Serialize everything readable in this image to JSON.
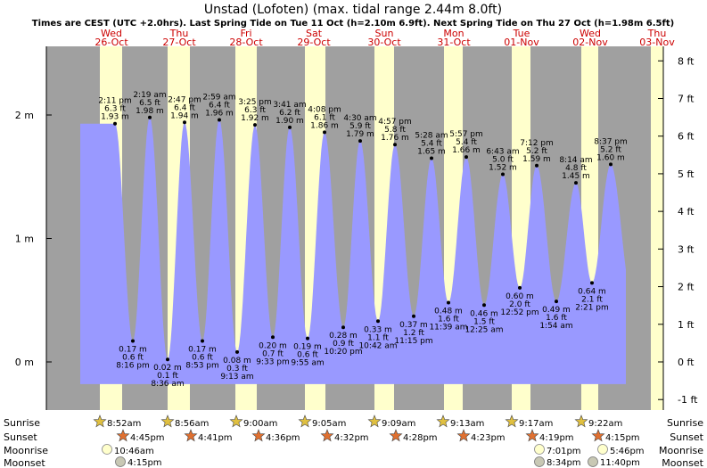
{
  "title": "Unstad (Lofoten) (max. tidal range 2.44m 8.0ft)",
  "subtitle": "Times are CEST (UTC +2.0hrs). Last Spring Tide on Tue 11 Oct (h=2.10m 6.9ft). Next Spring Tide on Thu 27 Oct (h=1.98m 6.5ft)",
  "colors": {
    "water": "#9999ff",
    "night": "#a0a0a0",
    "day": "#ffffcc",
    "day_label": "#cc0000"
  },
  "chart_data": {
    "type": "area",
    "y_left_ticks": [
      "0 m",
      "1 m",
      "2 m"
    ],
    "y_right_ticks": [
      "-1 ft",
      "0 ft",
      "1 ft",
      "2 ft",
      "3 ft",
      "4 ft",
      "5 ft",
      "6 ft",
      "7 ft",
      "8 ft"
    ],
    "ylim_m": [
      -0.3,
      2.5
    ],
    "days": [
      {
        "name": "Wed",
        "date": "26-Oct"
      },
      {
        "name": "Thu",
        "date": "27-Oct"
      },
      {
        "name": "Fri",
        "date": "28-Oct"
      },
      {
        "name": "Sat",
        "date": "29-Oct"
      },
      {
        "name": "Sun",
        "date": "30-Oct"
      },
      {
        "name": "Mon",
        "date": "31-Oct"
      },
      {
        "name": "Tue",
        "date": "01-Nov"
      },
      {
        "name": "Wed",
        "date": "02-Nov"
      },
      {
        "name": "Thu",
        "date": "03-Nov"
      }
    ],
    "high_tides": [
      {
        "time": "2:11 pm",
        "ft": "6.3 ft",
        "m": "1.93 m",
        "height": 1.93
      },
      {
        "time": "2:19 am",
        "ft": "6.5 ft",
        "m": "1.98 m",
        "height": 1.98
      },
      {
        "time": "2:47 pm",
        "ft": "6.4 ft",
        "m": "1.94 m",
        "height": 1.94
      },
      {
        "time": "2:59 am",
        "ft": "6.4 ft",
        "m": "1.96 m",
        "height": 1.96
      },
      {
        "time": "3:25 pm",
        "ft": "6.3 ft",
        "m": "1.92 m",
        "height": 1.92
      },
      {
        "time": "3:41 am",
        "ft": "6.2 ft",
        "m": "1.90 m",
        "height": 1.9
      },
      {
        "time": "4:08 pm",
        "ft": "6.1 ft",
        "m": "1.86 m",
        "height": 1.86
      },
      {
        "time": "4:30 am",
        "ft": "5.9 ft",
        "m": "1.79 m",
        "height": 1.79
      },
      {
        "time": "4:57 pm",
        "ft": "5.8 ft",
        "m": "1.76 m",
        "height": 1.76
      },
      {
        "time": "5:28 am",
        "ft": "5.4 ft",
        "m": "1.65 m",
        "height": 1.65
      },
      {
        "time": "5:57 pm",
        "ft": "5.4 ft",
        "m": "1.66 m",
        "height": 1.66
      },
      {
        "time": "6:43 am",
        "ft": "5.0 ft",
        "m": "1.52 m",
        "height": 1.52
      },
      {
        "time": "7:12 pm",
        "ft": "5.2 ft",
        "m": "1.59 m",
        "height": 1.59
      },
      {
        "time": "8:14 am",
        "ft": "4.8 ft",
        "m": "1.45 m",
        "height": 1.45
      },
      {
        "time": "8:37 pm",
        "ft": "5.2 ft",
        "m": "1.60 m",
        "height": 1.6
      }
    ],
    "low_tides": [
      {
        "m": "0.17 m",
        "ft": "0.6 ft",
        "time": "8:16 pm",
        "height": 0.17
      },
      {
        "m": "0.02 m",
        "ft": "0.1 ft",
        "time": "8:36 am",
        "height": 0.02
      },
      {
        "m": "0.17 m",
        "ft": "0.6 ft",
        "time": "8:53 pm",
        "height": 0.17
      },
      {
        "m": "0.08 m",
        "ft": "0.3 ft",
        "time": "9:13 am",
        "height": 0.08
      },
      {
        "m": "0.20 m",
        "ft": "0.7 ft",
        "time": "9:33 pm",
        "height": 0.2
      },
      {
        "m": "0.19 m",
        "ft": "0.6 ft",
        "time": "9:55 am",
        "height": 0.19
      },
      {
        "m": "0.28 m",
        "ft": "0.9 ft",
        "time": "10:20 pm",
        "height": 0.28
      },
      {
        "m": "0.33 m",
        "ft": "1.1 ft",
        "time": "10:42 am",
        "height": 0.33
      },
      {
        "m": "0.37 m",
        "ft": "1.2 ft",
        "time": "11:15 pm",
        "height": 0.37
      },
      {
        "m": "0.48 m",
        "ft": "1.6 ft",
        "time": "11:39 am",
        "height": 0.48
      },
      {
        "m": "0.46 m",
        "ft": "1.5 ft",
        "time": "12:25 am",
        "height": 0.46
      },
      {
        "m": "0.60 m",
        "ft": "2.0 ft",
        "time": "12:52 pm",
        "height": 0.6
      },
      {
        "m": "0.49 m",
        "ft": "1.6 ft",
        "time": "1:54 am",
        "height": 0.49
      },
      {
        "m": "0.64 m",
        "ft": "2.1 ft",
        "time": "2:21 pm",
        "height": 0.64
      }
    ],
    "row_labels": [
      "Sunrise",
      "Sunset",
      "Moonrise",
      "Moonset"
    ],
    "sunrise": [
      "8:52am",
      "8:56am",
      "9:00am",
      "9:05am",
      "9:09am",
      "9:13am",
      "9:17am",
      "9:22am"
    ],
    "sunset": [
      "4:45pm",
      "4:41pm",
      "4:36pm",
      "4:32pm",
      "4:28pm",
      "4:23pm",
      "4:19pm",
      "4:15pm"
    ],
    "moonrise": [
      "10:46am",
      "7:01pm",
      "5:46pm"
    ],
    "moonset": [
      "4:15pm",
      "8:34pm",
      "11:40pm"
    ]
  }
}
